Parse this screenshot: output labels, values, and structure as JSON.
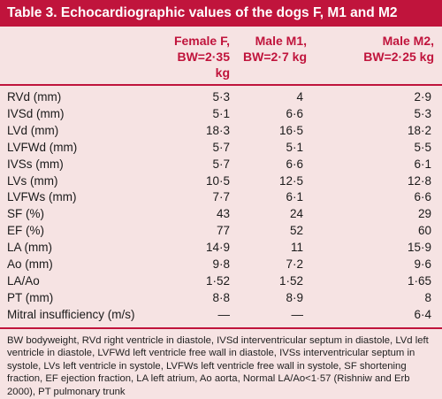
{
  "table": {
    "title": "Table 3. Echocardiographic values of the dogs F, M1 and M2",
    "header_row1": [
      "",
      "Female F,",
      "Male M1,",
      "Male M2,"
    ],
    "header_row2": [
      "",
      "BW=2·35 kg",
      "BW=2·7 kg",
      "BW=2·25 kg"
    ],
    "rows": [
      [
        "RVd (mm)",
        "5·3",
        "4",
        "2·9"
      ],
      [
        "IVSd (mm)",
        "5·1",
        "6·6",
        "5·3"
      ],
      [
        "LVd (mm)",
        "18·3",
        "16·5",
        "18·2"
      ],
      [
        "LVFWd (mm)",
        "5·7",
        "5·1",
        "5·5"
      ],
      [
        "IVSs (mm)",
        "5·7",
        "6·6",
        "6·1"
      ],
      [
        "LVs (mm)",
        "10·5",
        "12·5",
        "12·8"
      ],
      [
        "LVFWs (mm)",
        "7·7",
        "6·1",
        "6·6"
      ],
      [
        "SF (%)",
        "43",
        "24",
        "29"
      ],
      [
        "EF (%)",
        "77",
        "52",
        "60"
      ],
      [
        "LA (mm)",
        "14·9",
        "11",
        "15·9"
      ],
      [
        "Ao (mm)",
        "9·8",
        "7·2",
        "9·6"
      ],
      [
        "LA/Ao",
        "1·52",
        "1·52",
        "1·65"
      ],
      [
        "PT (mm)",
        "8·8",
        "8·9",
        "8"
      ],
      [
        "Mitral insufficiency (m/s)",
        "—",
        "—",
        "6·4"
      ]
    ],
    "footnote": "BW bodyweight, RVd right ventricle in diastole, IVSd interventricular septum in diastole, LVd left ventricle in diastole, LVFWd left ventricle free wall in diastole, IVSs interventricular septum in systole, LVs left ventricle in systole, LVFWs left ventricle free wall in systole, SF shortening fraction, EF ejection fraction, LA left atrium, Ao aorta, Normal LA/Ao<1·57 (Rishniw and Erb 2000), PT pulmonary trunk"
  },
  "colors": {
    "accent": "#c0143c",
    "background": "#f6e3e3"
  }
}
